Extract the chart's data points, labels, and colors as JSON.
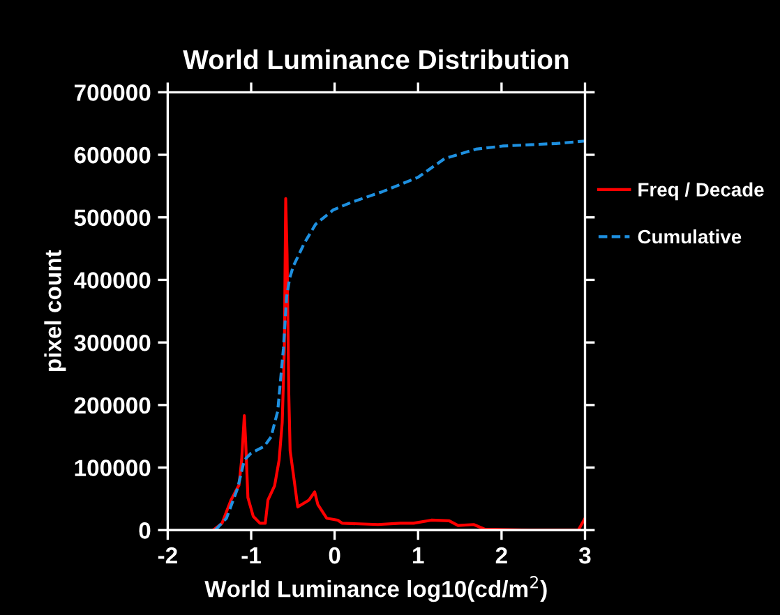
{
  "chart_data": {
    "type": "line",
    "title": "World Luminance Distribution",
    "xlabel": "World Luminance log10(cd/m$^{2}$)",
    "ylabel": "pixel count",
    "xlim": [
      -2,
      3
    ],
    "xticks": [
      -2,
      -1,
      0,
      1,
      2,
      3
    ],
    "ylim": [
      0,
      700000
    ],
    "yticks": [
      0,
      100000,
      200000,
      300000,
      400000,
      500000,
      600000,
      700000
    ],
    "grid": false,
    "legend": "right",
    "marker": "none",
    "series": [
      {
        "name": "Freq / Decade",
        "color": "#ff0000",
        "line_style": "solid",
        "x": [
          -1.456,
          -1.349,
          -1.242,
          -1.146,
          -1.114,
          -1.082,
          -1.066,
          -1.039,
          -0.975,
          -0.895,
          -0.831,
          -0.799,
          -0.719,
          -0.665,
          -0.628,
          -0.602,
          -0.586,
          -0.57,
          -0.549,
          -0.533,
          -0.495,
          -0.442,
          -0.308,
          -0.239,
          -0.201,
          -0.095,
          0.038,
          0.092,
          0.519,
          0.786,
          0.946,
          1.159,
          1.372,
          1.479,
          1.666,
          1.799,
          2.333,
          2.92,
          3.0
        ],
        "values": [
          0,
          11000,
          48000,
          72000,
          112000,
          183000,
          142000,
          52000,
          22000,
          11000,
          11000,
          48000,
          71000,
          112000,
          172000,
          291000,
          530000,
          441000,
          217000,
          127000,
          90000,
          37000,
          48000,
          61000,
          41000,
          19000,
          16000,
          11000,
          9000,
          11000,
          11000,
          16000,
          15000,
          7500,
          9000,
          1500,
          0,
          0,
          19000
        ]
      },
      {
        "name": "Cumulative",
        "color": "#1e90e0",
        "line_style": "dashed",
        "x": [
          -1.43,
          -1.296,
          -1.162,
          -1.082,
          -1.002,
          -0.842,
          -0.762,
          -0.682,
          -0.613,
          -0.575,
          -0.538,
          -0.495,
          -0.362,
          -0.228,
          -0.015,
          0.199,
          0.572,
          0.999,
          1.319,
          1.693,
          2.013,
          2.653,
          3.0
        ],
        "values": [
          0,
          19000,
          67000,
          112000,
          123000,
          134000,
          149000,
          190000,
          291000,
          373000,
          403000,
          422000,
          459000,
          489000,
          512000,
          524000,
          541000,
          564000,
          594000,
          609000,
          614000,
          618000,
          622000
        ]
      }
    ]
  }
}
